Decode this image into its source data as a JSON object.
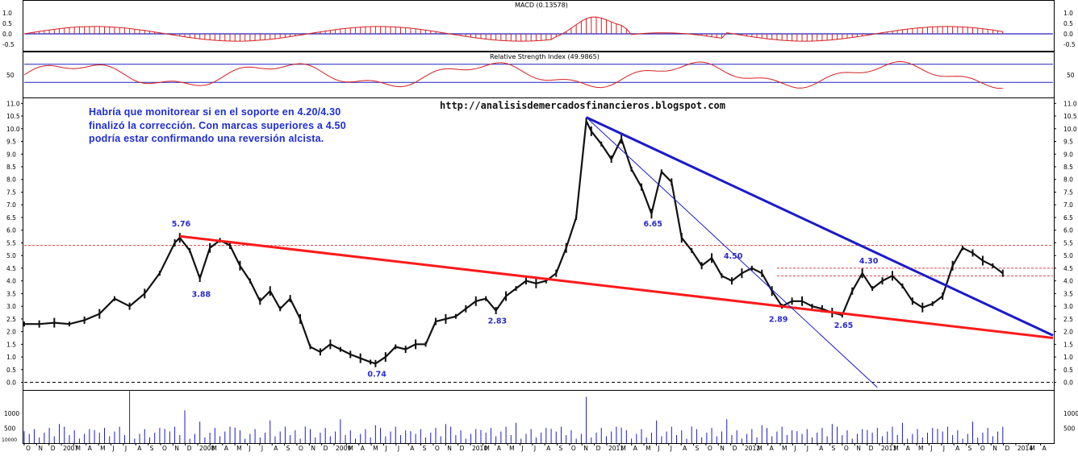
{
  "header": {
    "macd_title": "MACD (0.13578)",
    "rsi_title": "Relative Strength Index (49.9865)",
    "source_url": "http://analisisdemercadosfinancieros.blogspot.com"
  },
  "annotation": {
    "line1": "Habría que monitorear si en el soporte en 4.20/4.30",
    "line2": "finalizó la corrección. Con marcas superiores a 4.50",
    "line3": "podría estar confirmando una reversión alcista."
  },
  "macd_ticks": [
    "1.0",
    "0.5",
    "0.0",
    "-0.5"
  ],
  "rsi_ticks": [
    "50"
  ],
  "volume_ticks": [
    "1000",
    "500"
  ],
  "volume_unit": "10000",
  "colors": {
    "price": "#111111",
    "support_line": "#ff1a1a",
    "resistance_line": "#1a1acc",
    "label_blue": "#2a2acf",
    "macd_red": "#d42020",
    "macd_zero": "#2020c0",
    "rsi_line": "#d42020",
    "rsi_bands": "#2020c0",
    "level_dashed": "#e04040",
    "volume_bar": "#1a1acc"
  },
  "chart_data": {
    "type": "line",
    "title": "",
    "ylim": [
      -0.3,
      11.2
    ],
    "y_ticks": [
      "0.0",
      "0.5",
      "1.0",
      "1.5",
      "2.0",
      "2.5",
      "3.0",
      "3.5",
      "4.0",
      "4.5",
      "5.0",
      "5.5",
      "6.0",
      "6.5",
      "7.0",
      "7.5",
      "8.0",
      "8.5",
      "9.0",
      "9.5",
      "10.0",
      "10.5",
      "11.0"
    ],
    "x_ticks": [
      "O",
      "N",
      "D",
      "2007",
      "M",
      "A",
      "M",
      "J",
      "J",
      "A",
      "S",
      "O",
      "N",
      "D",
      "2008",
      "M",
      "A",
      "M",
      "J",
      "J",
      "A",
      "S",
      "O",
      "N",
      "D",
      "2009",
      "M",
      "A",
      "M",
      "J",
      "J",
      "A",
      "S",
      "O",
      "N",
      "D",
      "2010",
      "M",
      "A",
      "M",
      "J",
      "J",
      "A",
      "S",
      "O",
      "N",
      "D",
      "2011",
      "M",
      "A",
      "M",
      "J",
      "J",
      "A",
      "S",
      "O",
      "N",
      "D",
      "2012",
      "M",
      "A",
      "M",
      "J",
      "J",
      "A",
      "S",
      "O",
      "N",
      "D",
      "2013",
      "M",
      "A",
      "M",
      "J",
      "J",
      "A",
      "S",
      "O",
      "N",
      "D",
      "2014",
      "M",
      "A"
    ],
    "price_series": {
      "name": "",
      "points": [
        [
          0,
          2.3
        ],
        [
          3,
          2.3
        ],
        [
          6,
          2.35
        ],
        [
          9,
          2.3
        ],
        [
          12,
          2.45
        ],
        [
          15,
          2.7
        ],
        [
          18,
          3.3
        ],
        [
          21,
          3.0
        ],
        [
          24,
          3.5
        ],
        [
          27,
          4.3
        ],
        [
          30,
          5.5
        ],
        [
          31,
          5.7
        ],
        [
          33,
          5.2
        ],
        [
          35,
          4.1
        ],
        [
          37,
          5.3
        ],
        [
          39,
          5.6
        ],
        [
          41,
          5.4
        ],
        [
          43,
          4.6
        ],
        [
          45,
          4.0
        ],
        [
          47,
          3.2
        ],
        [
          49,
          3.6
        ],
        [
          51,
          2.9
        ],
        [
          53,
          3.3
        ],
        [
          55,
          2.5
        ],
        [
          57,
          1.4
        ],
        [
          59,
          1.2
        ],
        [
          61,
          1.5
        ],
        [
          63,
          1.3
        ],
        [
          65,
          1.1
        ],
        [
          67,
          0.95
        ],
        [
          69,
          0.8
        ],
        [
          70,
          0.74
        ],
        [
          72,
          1.0
        ],
        [
          74,
          1.4
        ],
        [
          76,
          1.3
        ],
        [
          78,
          1.5
        ],
        [
          80,
          1.5
        ],
        [
          82,
          2.4
        ],
        [
          84,
          2.5
        ],
        [
          86,
          2.6
        ],
        [
          88,
          2.9
        ],
        [
          90,
          3.2
        ],
        [
          92,
          3.3
        ],
        [
          94,
          2.83
        ],
        [
          96,
          3.4
        ],
        [
          98,
          3.7
        ],
        [
          100,
          4.0
        ],
        [
          102,
          3.9
        ],
        [
          104,
          4.0
        ],
        [
          106,
          4.3
        ],
        [
          108,
          5.3
        ],
        [
          110,
          6.5
        ],
        [
          112,
          10.3
        ],
        [
          113,
          9.9
        ],
        [
          115,
          9.4
        ],
        [
          117,
          8.8
        ],
        [
          119,
          9.6
        ],
        [
          121,
          8.4
        ],
        [
          123,
          7.7
        ],
        [
          125,
          6.65
        ],
        [
          127,
          8.3
        ],
        [
          129,
          7.9
        ],
        [
          131,
          5.7
        ],
        [
          133,
          5.2
        ],
        [
          135,
          4.6
        ],
        [
          137,
          4.9
        ],
        [
          139,
          4.2
        ],
        [
          141,
          4.0
        ],
        [
          143,
          4.3
        ],
        [
          145,
          4.5
        ],
        [
          147,
          4.3
        ],
        [
          149,
          3.6
        ],
        [
          151,
          3.0
        ],
        [
          153,
          3.2
        ],
        [
          155,
          3.2
        ],
        [
          157,
          3.0
        ],
        [
          159,
          2.9
        ],
        [
          161,
          2.75
        ],
        [
          163,
          2.65
        ],
        [
          165,
          3.6
        ],
        [
          167,
          4.3
        ],
        [
          169,
          3.7
        ],
        [
          171,
          4.0
        ],
        [
          173,
          4.2
        ],
        [
          175,
          3.8
        ],
        [
          177,
          3.2
        ],
        [
          179,
          2.95
        ],
        [
          181,
          3.1
        ],
        [
          183,
          3.4
        ],
        [
          185,
          4.6
        ],
        [
          187,
          5.3
        ],
        [
          189,
          5.1
        ],
        [
          191,
          4.8
        ],
        [
          193,
          4.6
        ],
        [
          195,
          4.3
        ]
      ]
    },
    "levels_dashed": [
      5.4,
      4.5,
      4.2
    ],
    "trendlines": [
      {
        "name": "",
        "from": [
          31,
          5.76
        ],
        "to": [
          205,
          1.75
        ],
        "color": "support_line"
      },
      {
        "name": "",
        "from": [
          112,
          10.45
        ],
        "to": [
          205,
          1.85
        ],
        "color": "resistance_line"
      },
      {
        "name": "",
        "from": [
          112,
          10.45
        ],
        "to": [
          170,
          -0.2
        ],
        "color": "resistance_line"
      }
    ],
    "annotations": [
      {
        "label": "5.76",
        "x": 31,
        "y": 5.76
      },
      {
        "label": "3.88",
        "x": 35,
        "y": 3.88
      },
      {
        "label": "0.74",
        "x": 70,
        "y": 0.74
      },
      {
        "label": "2.83",
        "x": 94,
        "y": 2.83
      },
      {
        "label": "6.65",
        "x": 125,
        "y": 6.65
      },
      {
        "label": "4.50",
        "x": 141,
        "y": 4.5
      },
      {
        "label": "2.89",
        "x": 150,
        "y": 2.89
      },
      {
        "label": "2.65",
        "x": 163,
        "y": 2.65
      },
      {
        "label": "4.30",
        "x": 168,
        "y": 4.3
      }
    ]
  }
}
